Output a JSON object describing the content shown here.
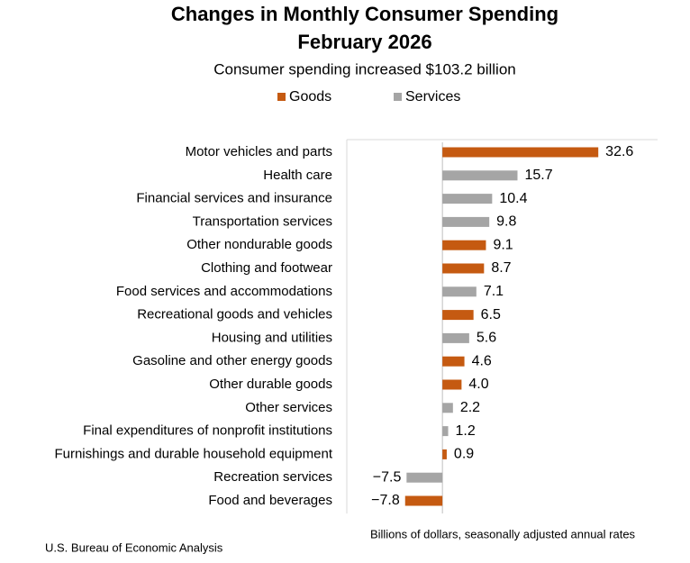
{
  "chart_data": {
    "type": "hbar",
    "title": [
      "Changes in Monthly Consumer Spending",
      "February 2026"
    ],
    "subtitle": "Consumer spending increased $103.2 billion",
    "x_label": "Billions of dollars, seasonally adjusted annual rates",
    "source": "U.S. Bureau of Economic Analysis",
    "categories": [
      "Motor vehicles and parts",
      "Health care",
      "Financial services and insurance",
      "Transportation services",
      "Other nondurable goods",
      "Clothing and footwear",
      "Food services and accommodations",
      "Recreational goods and vehicles",
      "Housing and utilities",
      "Gasoline and other energy goods",
      "Other durable goods",
      "Other services",
      "Final expenditures of nonprofit institutions",
      "Furnishings and durable household equipment",
      "Recreation services",
      "Food and beverages"
    ],
    "series": [
      {
        "name": "Goods",
        "color": "#c55a11",
        "values": [
          32.6,
          null,
          null,
          null,
          9.1,
          8.7,
          null,
          6.5,
          null,
          4.6,
          4.0,
          null,
          null,
          0.9,
          null,
          -7.8
        ],
        "value_labels": [
          "32.6",
          null,
          null,
          null,
          "9.1",
          "8.7",
          null,
          "6.5",
          null,
          "4.6",
          "4.0",
          null,
          null,
          "0.9",
          null,
          "−7.8"
        ]
      },
      {
        "name": "Services",
        "color": "#a5a5a5",
        "values": [
          null,
          15.7,
          10.4,
          9.8,
          null,
          null,
          7.1,
          null,
          5.6,
          null,
          null,
          2.2,
          1.2,
          null,
          -7.5,
          null
        ],
        "value_labels": [
          null,
          "15.7",
          "10.4",
          "9.8",
          null,
          null,
          "7.1",
          null,
          "5.6",
          null,
          null,
          "2.2",
          "1.2",
          null,
          "−7.5",
          null
        ]
      }
    ],
    "xlim": [
      -20,
      45
    ]
  }
}
